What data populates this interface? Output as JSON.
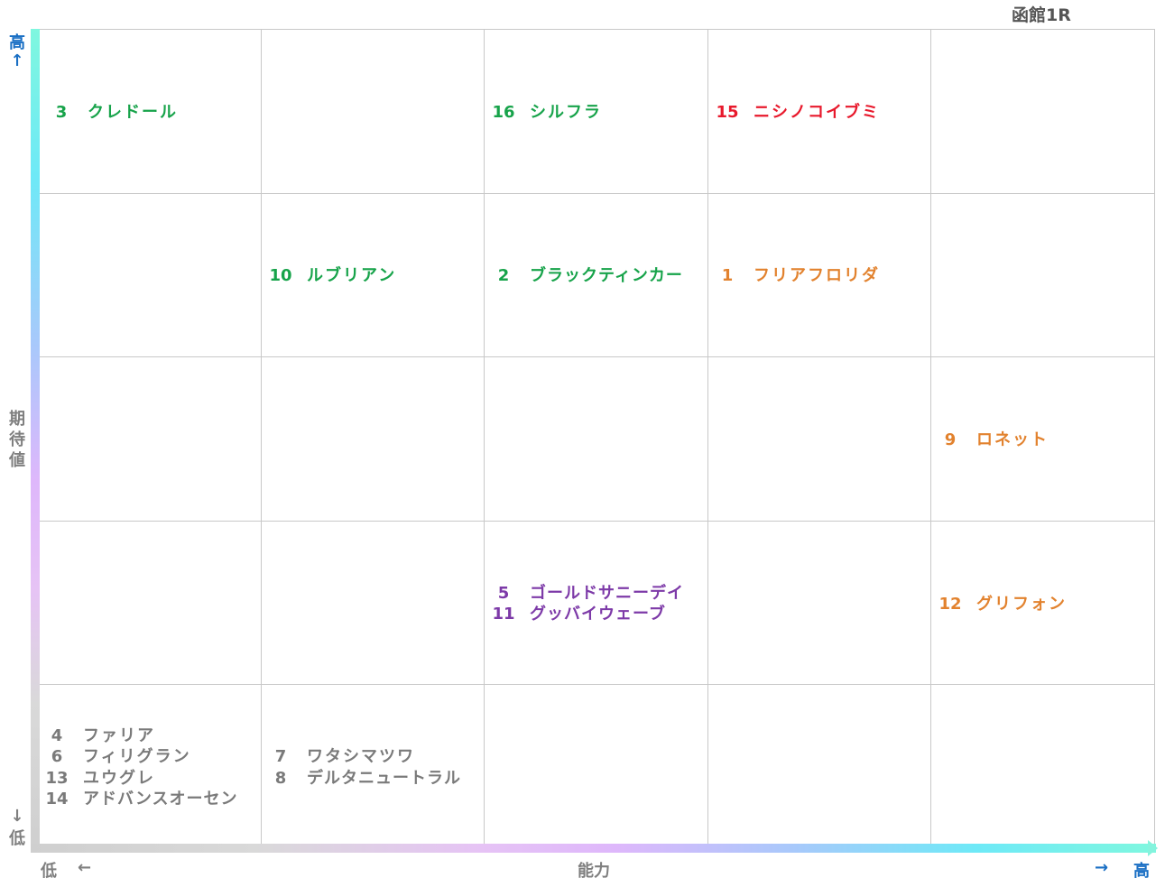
{
  "title": "函館1R",
  "axes": {
    "y_high": "高",
    "y_up_arrow": "↑",
    "y_label": [
      "期",
      "待",
      "値"
    ],
    "y_down_arrow": "↓",
    "y_low": "低",
    "x_low": "低",
    "x_left_arrow": "←",
    "x_label": "能力",
    "x_right_arrow": "→",
    "x_high": "高"
  },
  "colors": {
    "green": "#17a34a",
    "red": "#e8192c",
    "orange": "#e2822e",
    "purple": "#7d3aa8",
    "gray": "#7a7a7a",
    "axis_blue": "#1a6fc4"
  },
  "cells": {
    "r1c1": [
      {
        "num": "3",
        "name": "クレドール"
      }
    ],
    "r1c3": [
      {
        "num": "16",
        "name": "シルフラ"
      }
    ],
    "r1c4": [
      {
        "num": "15",
        "name": "ニシノコイブミ"
      }
    ],
    "r2c2": [
      {
        "num": "10",
        "name": "ルブリアン"
      }
    ],
    "r2c3": [
      {
        "num": "2",
        "name": "ブラックティンカー"
      }
    ],
    "r2c4": [
      {
        "num": "1",
        "name": "フリアフロリダ"
      }
    ],
    "r3c5": [
      {
        "num": "9",
        "name": "ロネット"
      }
    ],
    "r4c3": [
      {
        "num": "5",
        "name": "ゴールドサニーデイ"
      },
      {
        "num": "11",
        "name": "グッバイウェーブ"
      }
    ],
    "r4c5": [
      {
        "num": "12",
        "name": "グリフォン"
      }
    ],
    "r5c1": [
      {
        "num": "4",
        "name": "ファリア"
      },
      {
        "num": "6",
        "name": "フィリグラン"
      },
      {
        "num": "13",
        "name": "ユウグレ"
      },
      {
        "num": "14",
        "name": "アドバンスオーセン"
      }
    ],
    "r5c2": [
      {
        "num": "7",
        "name": "ワタシマツワ"
      },
      {
        "num": "8",
        "name": "デルタニュートラル"
      }
    ]
  }
}
